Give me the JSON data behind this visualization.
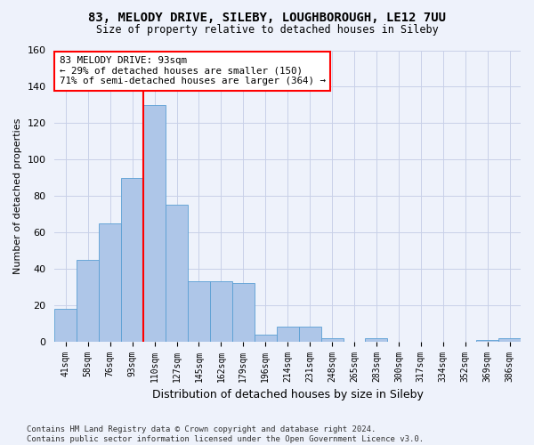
{
  "title": "83, MELODY DRIVE, SILEBY, LOUGHBOROUGH, LE12 7UU",
  "subtitle": "Size of property relative to detached houses in Sileby",
  "xlabel": "Distribution of detached houses by size in Sileby",
  "ylabel": "Number of detached properties",
  "categories": [
    "41sqm",
    "58sqm",
    "76sqm",
    "93sqm",
    "110sqm",
    "127sqm",
    "145sqm",
    "162sqm",
    "179sqm",
    "196sqm",
    "214sqm",
    "231sqm",
    "248sqm",
    "265sqm",
    "283sqm",
    "300sqm",
    "317sqm",
    "334sqm",
    "352sqm",
    "369sqm",
    "386sqm"
  ],
  "values": [
    18,
    45,
    65,
    90,
    130,
    75,
    33,
    33,
    32,
    4,
    8,
    8,
    2,
    0,
    2,
    0,
    0,
    0,
    0,
    1,
    2
  ],
  "bar_color": "#aec6e8",
  "bar_edge_color": "#5a9fd4",
  "red_line_x": 3.5,
  "annotation_line1": "83 MELODY DRIVE: 93sqm",
  "annotation_line2": "← 29% of detached houses are smaller (150)",
  "annotation_line3": "71% of semi-detached houses are larger (364) →",
  "annotation_box_color": "white",
  "annotation_box_edge_color": "red",
  "ylim": [
    0,
    160
  ],
  "yticks": [
    0,
    20,
    40,
    60,
    80,
    100,
    120,
    140,
    160
  ],
  "footer_text": "Contains HM Land Registry data © Crown copyright and database right 2024.\nContains public sector information licensed under the Open Government Licence v3.0.",
  "background_color": "#eef2fb",
  "grid_color": "#c8d0e8"
}
